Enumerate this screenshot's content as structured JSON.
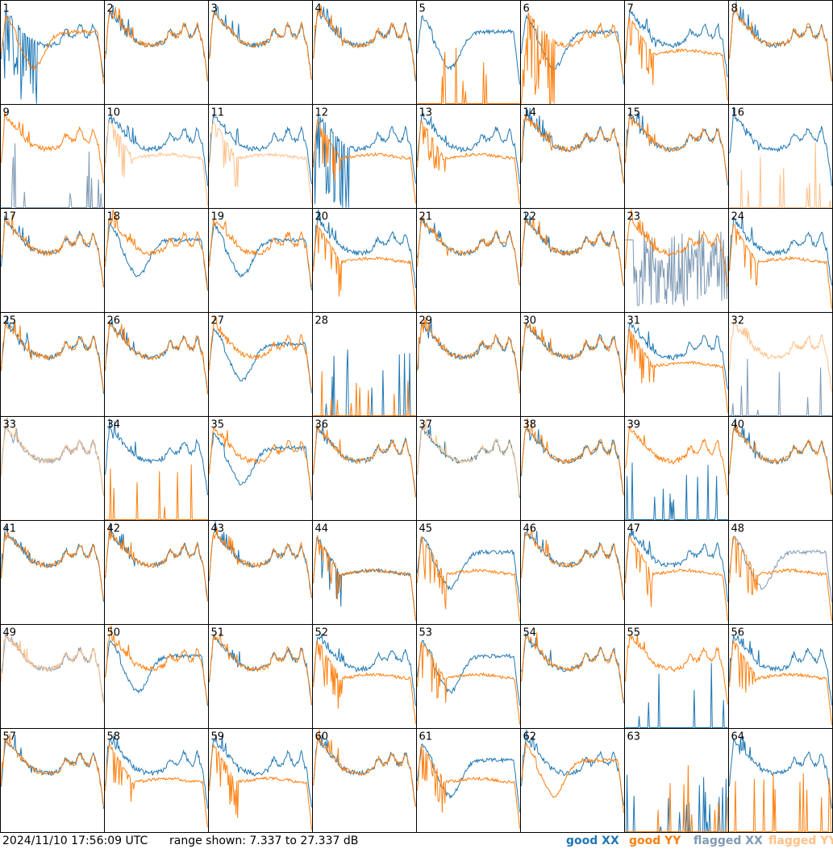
{
  "footer": {
    "timestamp": "2024/11/10 17:56:09 UTC",
    "range_text": "range shown: 7.337 to 27.337 dB"
  },
  "legend": {
    "good_xx": "good XX",
    "good_yy": "good YY",
    "flagged_xx": "flagged XX",
    "flagged_yy": "flagged YY"
  },
  "colors": {
    "good_xx": "#1f77b4",
    "good_yy": "#ff7f0e",
    "flagged_xx": "#7f9ab4",
    "flagged_yy": "#ffc088"
  },
  "chart_data": {
    "type": "line",
    "grid": "8x8 small multiples",
    "ylim": [
      7.337,
      27.337
    ],
    "yunit": "dB",
    "panels": [
      {
        "label": "1",
        "xx": "good",
        "yy": "good",
        "shape_xx": "spiky",
        "shape_yy": "dip"
      },
      {
        "label": "2",
        "xx": "good",
        "yy": "good",
        "shape_xx": "normal",
        "shape_yy": "normal"
      },
      {
        "label": "3",
        "xx": "good",
        "yy": "good",
        "shape_xx": "normal",
        "shape_yy": "normal"
      },
      {
        "label": "4",
        "xx": "good",
        "yy": "good",
        "shape_xx": "normal",
        "shape_yy": "normal"
      },
      {
        "label": "5",
        "xx": "good",
        "yy": "good",
        "shape_xx": "dip",
        "shape_yy": "dead"
      },
      {
        "label": "6",
        "xx": "good",
        "yy": "good",
        "shape_xx": "dip",
        "shape_yy": "spiky"
      },
      {
        "label": "7",
        "xx": "good",
        "yy": "good",
        "shape_xx": "normal",
        "shape_yy": "lowflat"
      },
      {
        "label": "8",
        "xx": "good",
        "yy": "good",
        "shape_xx": "normal",
        "shape_yy": "normal"
      },
      {
        "label": "9",
        "xx": "flagged",
        "yy": "good",
        "shape_xx": "dead",
        "shape_yy": "normal"
      },
      {
        "label": "10",
        "xx": "good",
        "yy": "flagged",
        "shape_xx": "normal",
        "shape_yy": "lowflat"
      },
      {
        "label": "11",
        "xx": "good",
        "yy": "flagged",
        "shape_xx": "normal",
        "shape_yy": "lowflat"
      },
      {
        "label": "12",
        "xx": "good",
        "yy": "good",
        "shape_xx": "spiky",
        "shape_yy": "lowflat"
      },
      {
        "label": "13",
        "xx": "good",
        "yy": "good",
        "shape_xx": "normal",
        "shape_yy": "lowflat"
      },
      {
        "label": "14",
        "xx": "good",
        "yy": "good",
        "shape_xx": "normal",
        "shape_yy": "normal"
      },
      {
        "label": "15",
        "xx": "good",
        "yy": "good",
        "shape_xx": "normal",
        "shape_yy": "normal"
      },
      {
        "label": "16",
        "xx": "good",
        "yy": "flagged",
        "shape_xx": "normal",
        "shape_yy": "dead"
      },
      {
        "label": "17",
        "xx": "good",
        "yy": "good",
        "shape_xx": "normal",
        "shape_yy": "normal"
      },
      {
        "label": "18",
        "xx": "good",
        "yy": "good",
        "shape_xx": "dip",
        "shape_yy": "normal"
      },
      {
        "label": "19",
        "xx": "good",
        "yy": "good",
        "shape_xx": "dip",
        "shape_yy": "normal"
      },
      {
        "label": "20",
        "xx": "good",
        "yy": "good",
        "shape_xx": "normal",
        "shape_yy": "lowflat"
      },
      {
        "label": "21",
        "xx": "good",
        "yy": "good",
        "shape_xx": "normal",
        "shape_yy": "normal"
      },
      {
        "label": "22",
        "xx": "good",
        "yy": "good",
        "shape_xx": "normal",
        "shape_yy": "normal"
      },
      {
        "label": "23",
        "xx": "flagged",
        "yy": "good",
        "shape_xx": "noisy",
        "shape_yy": "normal"
      },
      {
        "label": "24",
        "xx": "good",
        "yy": "good",
        "shape_xx": "normal",
        "shape_yy": "lowflat"
      },
      {
        "label": "25",
        "xx": "good",
        "yy": "good",
        "shape_xx": "normal",
        "shape_yy": "normal"
      },
      {
        "label": "26",
        "xx": "good",
        "yy": "good",
        "shape_xx": "normal",
        "shape_yy": "normal"
      },
      {
        "label": "27",
        "xx": "good",
        "yy": "good",
        "shape_xx": "dip",
        "shape_yy": "normal"
      },
      {
        "label": "28",
        "xx": "good",
        "yy": "good",
        "shape_xx": "dead",
        "shape_yy": "dead"
      },
      {
        "label": "29",
        "xx": "good",
        "yy": "good",
        "shape_xx": "normal",
        "shape_yy": "normal"
      },
      {
        "label": "30",
        "xx": "good",
        "yy": "good",
        "shape_xx": "normal",
        "shape_yy": "normal"
      },
      {
        "label": "31",
        "xx": "good",
        "yy": "good",
        "shape_xx": "normal",
        "shape_yy": "lowflat"
      },
      {
        "label": "32",
        "xx": "flagged",
        "yy": "flagged",
        "shape_xx": "dead",
        "shape_yy": "normal"
      },
      {
        "label": "33",
        "xx": "flagged",
        "yy": "flagged",
        "shape_xx": "normal",
        "shape_yy": "normal"
      },
      {
        "label": "34",
        "xx": "good",
        "yy": "good",
        "shape_xx": "normal",
        "shape_yy": "dead"
      },
      {
        "label": "35",
        "xx": "good",
        "yy": "good",
        "shape_xx": "dip",
        "shape_yy": "normal"
      },
      {
        "label": "36",
        "xx": "good",
        "yy": "good",
        "shape_xx": "normal",
        "shape_yy": "normal"
      },
      {
        "label": "37",
        "xx": "good",
        "yy": "flagged",
        "shape_xx": "normal",
        "shape_yy": "normal"
      },
      {
        "label": "38",
        "xx": "good",
        "yy": "good",
        "shape_xx": "normal",
        "shape_yy": "normal"
      },
      {
        "label": "39",
        "xx": "good",
        "yy": "good",
        "shape_xx": "dead",
        "shape_yy": "normal"
      },
      {
        "label": "40",
        "xx": "good",
        "yy": "good",
        "shape_xx": "normal",
        "shape_yy": "normal"
      },
      {
        "label": "41",
        "xx": "good",
        "yy": "good",
        "shape_xx": "normal",
        "shape_yy": "normal"
      },
      {
        "label": "42",
        "xx": "good",
        "yy": "good",
        "shape_xx": "normal",
        "shape_yy": "normal"
      },
      {
        "label": "43",
        "xx": "good",
        "yy": "good",
        "shape_xx": "normal",
        "shape_yy": "normal"
      },
      {
        "label": "44",
        "xx": "good",
        "yy": "good",
        "shape_xx": "lowflat",
        "shape_yy": "lowflat"
      },
      {
        "label": "45",
        "xx": "good",
        "yy": "good",
        "shape_xx": "dip",
        "shape_yy": "lowflat"
      },
      {
        "label": "46",
        "xx": "good",
        "yy": "good",
        "shape_xx": "normal",
        "shape_yy": "normal"
      },
      {
        "label": "47",
        "xx": "good",
        "yy": "good",
        "shape_xx": "normal",
        "shape_yy": "lowflat"
      },
      {
        "label": "48",
        "xx": "flagged",
        "yy": "good",
        "shape_xx": "dip",
        "shape_yy": "lowflat"
      },
      {
        "label": "49",
        "xx": "flagged",
        "yy": "flagged",
        "shape_xx": "normal",
        "shape_yy": "normal"
      },
      {
        "label": "50",
        "xx": "good",
        "yy": "good",
        "shape_xx": "dip",
        "shape_yy": "normal"
      },
      {
        "label": "51",
        "xx": "good",
        "yy": "good",
        "shape_xx": "normal",
        "shape_yy": "normal"
      },
      {
        "label": "52",
        "xx": "good",
        "yy": "good",
        "shape_xx": "normal",
        "shape_yy": "lowflat"
      },
      {
        "label": "53",
        "xx": "good",
        "yy": "good",
        "shape_xx": "dip",
        "shape_yy": "lowflat"
      },
      {
        "label": "54",
        "xx": "good",
        "yy": "good",
        "shape_xx": "normal",
        "shape_yy": "normal"
      },
      {
        "label": "55",
        "xx": "good",
        "yy": "good",
        "shape_xx": "dead",
        "shape_yy": "normal"
      },
      {
        "label": "56",
        "xx": "good",
        "yy": "good",
        "shape_xx": "normal",
        "shape_yy": "lowflat"
      },
      {
        "label": "57",
        "xx": "good",
        "yy": "good",
        "shape_xx": "normal",
        "shape_yy": "normal"
      },
      {
        "label": "58",
        "xx": "good",
        "yy": "good",
        "shape_xx": "normal",
        "shape_yy": "lowflat"
      },
      {
        "label": "59",
        "xx": "good",
        "yy": "good",
        "shape_xx": "normal",
        "shape_yy": "lowflat"
      },
      {
        "label": "60",
        "xx": "good",
        "yy": "good",
        "shape_xx": "normal",
        "shape_yy": "normal"
      },
      {
        "label": "61",
        "xx": "good",
        "yy": "good",
        "shape_xx": "dip",
        "shape_yy": "lowflat"
      },
      {
        "label": "62",
        "xx": "good",
        "yy": "good",
        "shape_xx": "normal",
        "shape_yy": "dip"
      },
      {
        "label": "63",
        "xx": "good",
        "yy": "good",
        "shape_xx": "dead",
        "shape_yy": "dead"
      },
      {
        "label": "64",
        "xx": "good",
        "yy": "good",
        "shape_xx": "normal",
        "shape_yy": "dead"
      }
    ]
  }
}
